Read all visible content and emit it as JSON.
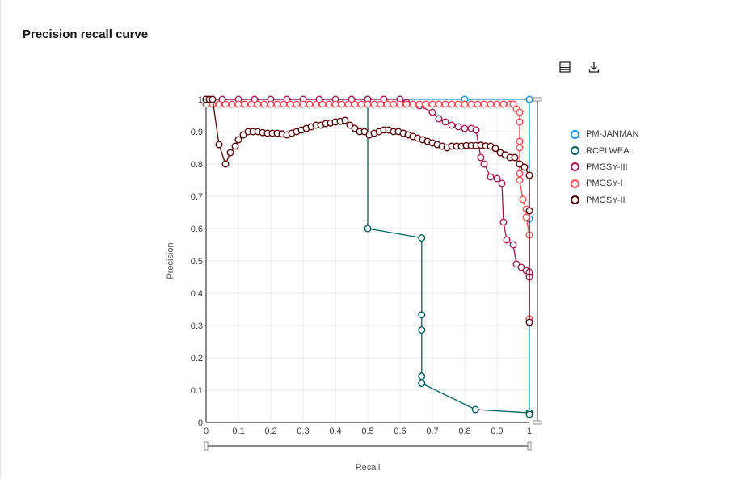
{
  "header": {
    "title": "Precision recall curve",
    "table_icon": "table-view-icon",
    "download_icon": "download-icon"
  },
  "chart_data": {
    "type": "line",
    "title": "",
    "xlabel": "Recall",
    "ylabel": "Precision",
    "xlim": [
      0,
      1
    ],
    "ylim": [
      0,
      1
    ],
    "xticks": [
      "0",
      "0.1",
      "0.2",
      "0.3",
      "0.4",
      "0.5",
      "0.6",
      "0.7",
      "0.8",
      "0.9",
      "1"
    ],
    "yticks": [
      "0",
      "0.1",
      "0.2",
      "0.3",
      "0.4",
      "0.5",
      "0.6",
      "0.7",
      "0.8",
      "0.9",
      "1"
    ],
    "grid": true,
    "legend_position": "right",
    "series": [
      {
        "name": "PM-JANMAN",
        "color": "#1192e8",
        "x": [
          0,
          0.5,
          0.6,
          0.8,
          1,
          1,
          1
        ],
        "y": [
          1,
          1,
          1,
          1,
          1,
          0.63,
          0.03
        ]
      },
      {
        "name": "RCPLWEA",
        "color": "#005d5d",
        "x": [
          0,
          0.5,
          0.5,
          0.667,
          0.667,
          0.667,
          0.667,
          0.667,
          0.833,
          1,
          1
        ],
        "y": [
          1,
          1,
          0.6,
          0.571,
          0.333,
          0.286,
          0.143,
          0.121,
          0.04,
          0.03,
          0.025
        ]
      },
      {
        "name": "PMGSY-III",
        "color": "#9f1853",
        "x": [
          0,
          0.05,
          0.1,
          0.15,
          0.2,
          0.25,
          0.3,
          0.35,
          0.4,
          0.45,
          0.5,
          0.55,
          0.6,
          0.62,
          0.66,
          0.7,
          0.72,
          0.74,
          0.76,
          0.78,
          0.8,
          0.82,
          0.835,
          0.85,
          0.86,
          0.88,
          0.9,
          0.915,
          0.92,
          0.93,
          0.95,
          0.96,
          0.975,
          0.99,
          1,
          1
        ],
        "y": [
          1,
          1,
          1,
          1,
          1,
          1,
          1,
          1,
          1,
          1,
          1,
          1,
          1,
          0.99,
          0.98,
          0.96,
          0.94,
          0.93,
          0.92,
          0.915,
          0.91,
          0.91,
          0.905,
          0.82,
          0.8,
          0.76,
          0.755,
          0.74,
          0.62,
          0.565,
          0.55,
          0.49,
          0.48,
          0.47,
          0.465,
          0.45
        ]
      },
      {
        "name": "PMGSY-I",
        "color": "#fa4d56",
        "x": [
          0,
          0.02,
          0.04,
          0.06,
          0.08,
          0.1,
          0.12,
          0.14,
          0.16,
          0.18,
          0.2,
          0.22,
          0.24,
          0.26,
          0.28,
          0.3,
          0.32,
          0.34,
          0.36,
          0.38,
          0.4,
          0.42,
          0.44,
          0.46,
          0.48,
          0.5,
          0.52,
          0.54,
          0.56,
          0.58,
          0.6,
          0.62,
          0.64,
          0.66,
          0.68,
          0.7,
          0.72,
          0.74,
          0.76,
          0.78,
          0.8,
          0.82,
          0.84,
          0.86,
          0.88,
          0.9,
          0.92,
          0.94,
          0.95,
          0.96,
          0.97,
          0.97,
          0.97,
          0.97,
          0.97,
          0.97,
          0.97,
          0.98,
          0.99,
          0.99,
          1,
          1
        ],
        "y": [
          0.985,
          0.985,
          0.985,
          0.985,
          0.985,
          0.985,
          0.985,
          0.985,
          0.985,
          0.985,
          0.985,
          0.985,
          0.985,
          0.985,
          0.985,
          0.985,
          0.985,
          0.985,
          0.985,
          0.985,
          0.985,
          0.985,
          0.985,
          0.985,
          0.985,
          0.985,
          0.985,
          0.985,
          0.985,
          0.985,
          0.985,
          0.985,
          0.985,
          0.985,
          0.985,
          0.985,
          0.985,
          0.985,
          0.985,
          0.985,
          0.985,
          0.985,
          0.985,
          0.985,
          0.985,
          0.985,
          0.985,
          0.985,
          0.985,
          0.97,
          0.96,
          0.93,
          0.87,
          0.85,
          0.8,
          0.77,
          0.75,
          0.69,
          0.66,
          0.635,
          0.58,
          0.32
        ]
      },
      {
        "name": "PMGSY-II",
        "color": "#570408",
        "x": [
          0,
          0.01,
          0.02,
          0.04,
          0.06,
          0.075,
          0.09,
          0.1,
          0.115,
          0.13,
          0.145,
          0.16,
          0.175,
          0.19,
          0.205,
          0.22,
          0.235,
          0.25,
          0.265,
          0.28,
          0.295,
          0.31,
          0.325,
          0.34,
          0.355,
          0.37,
          0.385,
          0.4,
          0.415,
          0.43,
          0.445,
          0.46,
          0.475,
          0.49,
          0.505,
          0.52,
          0.535,
          0.55,
          0.565,
          0.58,
          0.595,
          0.61,
          0.625,
          0.64,
          0.655,
          0.67,
          0.685,
          0.7,
          0.715,
          0.73,
          0.745,
          0.76,
          0.775,
          0.79,
          0.805,
          0.82,
          0.835,
          0.85,
          0.865,
          0.88,
          0.895,
          0.91,
          0.925,
          0.94,
          0.955,
          0.97,
          0.985,
          1,
          1,
          1
        ],
        "y": [
          1,
          1,
          1,
          0.86,
          0.8,
          0.835,
          0.855,
          0.875,
          0.89,
          0.9,
          0.9,
          0.9,
          0.897,
          0.895,
          0.895,
          0.895,
          0.893,
          0.89,
          0.895,
          0.9,
          0.905,
          0.91,
          0.915,
          0.92,
          0.92,
          0.925,
          0.927,
          0.93,
          0.932,
          0.935,
          0.92,
          0.91,
          0.9,
          0.9,
          0.89,
          0.895,
          0.9,
          0.905,
          0.905,
          0.9,
          0.9,
          0.895,
          0.89,
          0.885,
          0.88,
          0.875,
          0.87,
          0.865,
          0.86,
          0.855,
          0.85,
          0.855,
          0.855,
          0.855,
          0.857,
          0.857,
          0.857,
          0.858,
          0.856,
          0.855,
          0.848,
          0.835,
          0.828,
          0.82,
          0.82,
          0.8,
          0.79,
          0.765,
          0.655,
          0.31
        ]
      }
    ]
  }
}
